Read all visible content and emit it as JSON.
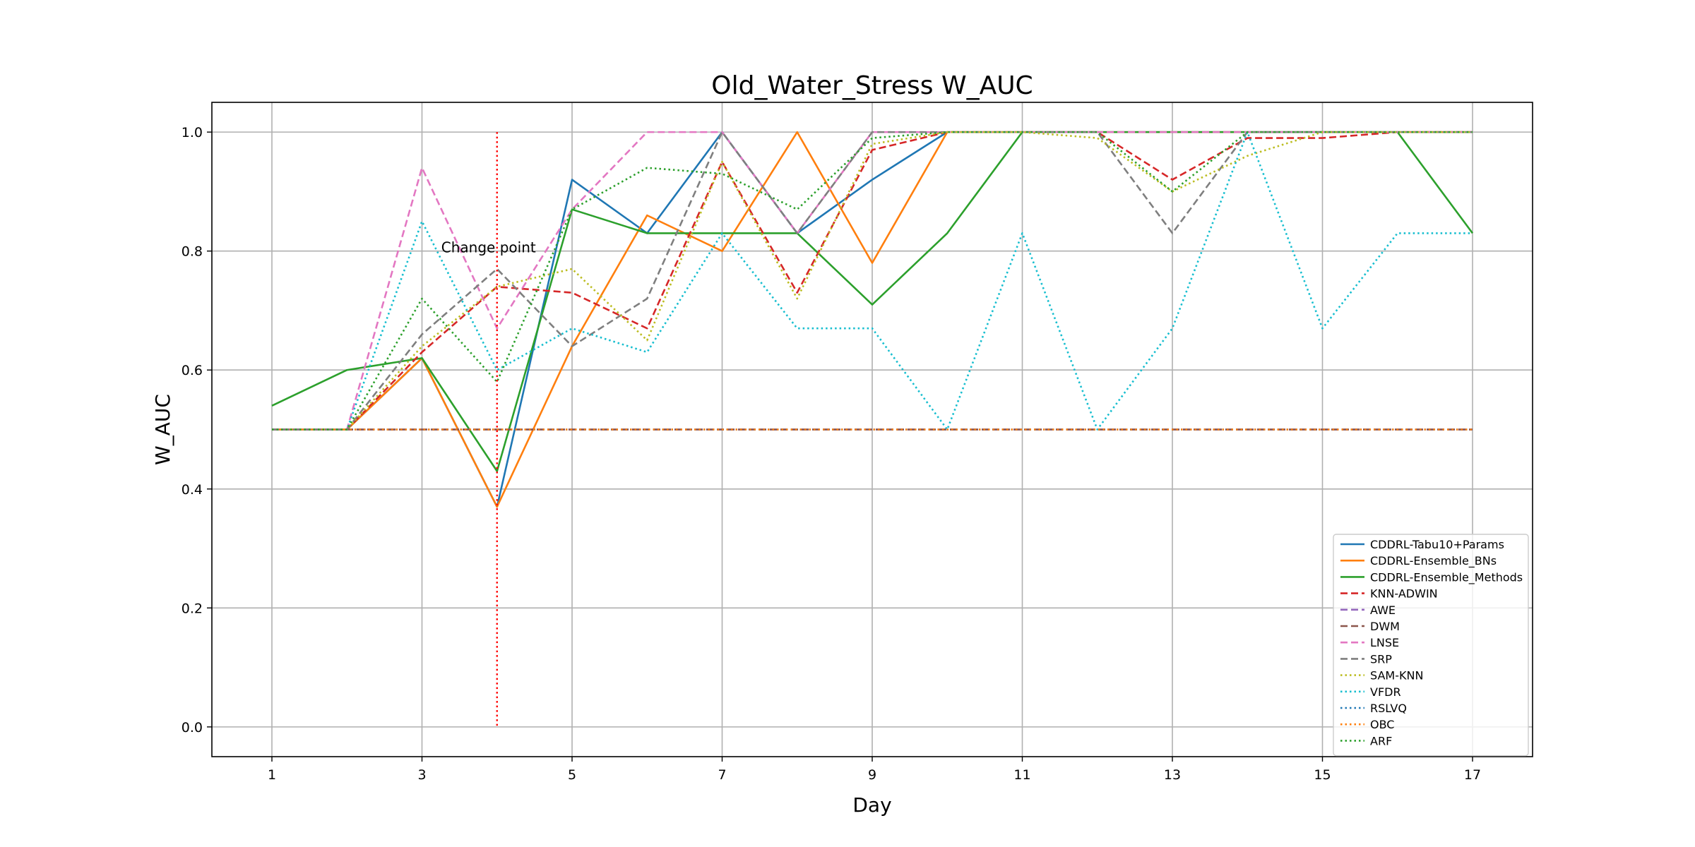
{
  "chart_data": {
    "type": "line",
    "title": "Old_Water_Stress W_AUC",
    "xlabel": "Day",
    "ylabel": "W_AUC",
    "xlim": [
      0.2,
      17.8
    ],
    "ylim": [
      -0.05,
      1.05
    ],
    "xticks": [
      1,
      3,
      5,
      7,
      9,
      11,
      13,
      15,
      17
    ],
    "yticks": [
      0.0,
      0.2,
      0.4,
      0.6,
      0.8,
      1.0
    ],
    "xtick_labels": [
      "1",
      "3",
      "5",
      "7",
      "9",
      "11",
      "13",
      "15",
      "17"
    ],
    "ytick_labels": [
      "0.0",
      "0.2",
      "0.4",
      "0.6",
      "0.8",
      "1.0"
    ],
    "grid": true,
    "legend_position": "lower-right",
    "x": [
      1,
      2,
      3,
      4,
      5,
      6,
      7,
      8,
      9,
      10,
      11,
      12,
      13,
      14,
      15,
      16,
      17
    ],
    "series": [
      {
        "name": "CDDRL-Tabu10+Params",
        "color": "#1f77b4",
        "style": "solid",
        "values": [
          0.5,
          0.5,
          0.62,
          0.37,
          0.92,
          0.83,
          1.0,
          0.83,
          0.92,
          1.0,
          1.0,
          1.0,
          1.0,
          1.0,
          1.0,
          1.0,
          1.0
        ]
      },
      {
        "name": "CDDRL-Ensemble_BNs",
        "color": "#ff7f0e",
        "style": "solid",
        "values": [
          0.5,
          0.5,
          0.62,
          0.37,
          0.64,
          0.86,
          0.8,
          1.0,
          0.78,
          1.0,
          1.0,
          1.0,
          1.0,
          1.0,
          1.0,
          1.0,
          1.0
        ]
      },
      {
        "name": "CDDRL-Ensemble_Methods",
        "color": "#2ca02c",
        "style": "solid",
        "values": [
          0.54,
          0.6,
          0.62,
          0.43,
          0.87,
          0.83,
          0.83,
          0.83,
          0.71,
          0.83,
          1.0,
          1.0,
          1.0,
          1.0,
          1.0,
          1.0,
          0.83
        ]
      },
      {
        "name": "KNN-ADWIN",
        "color": "#d62728",
        "style": "dashed",
        "values": [
          0.5,
          0.5,
          0.63,
          0.74,
          0.73,
          0.67,
          0.95,
          0.73,
          0.97,
          1.0,
          1.0,
          1.0,
          0.92,
          0.99,
          0.99,
          1.0,
          1.0
        ]
      },
      {
        "name": "AWE",
        "color": "#9467bd",
        "style": "dashed",
        "values": [
          0.5,
          0.5,
          0.5,
          0.5,
          0.5,
          0.5,
          0.5,
          0.5,
          0.5,
          0.5,
          0.5,
          0.5,
          0.5,
          0.5,
          0.5,
          0.5,
          0.5
        ]
      },
      {
        "name": "DWM",
        "color": "#8c564b",
        "style": "dashed",
        "values": [
          0.5,
          0.5,
          0.5,
          0.5,
          0.5,
          0.5,
          0.5,
          0.5,
          0.5,
          0.5,
          0.5,
          0.5,
          0.5,
          0.5,
          0.5,
          0.5,
          0.5
        ]
      },
      {
        "name": "LNSE",
        "color": "#e377c2",
        "style": "dashed",
        "values": [
          0.5,
          0.5,
          0.94,
          0.67,
          0.87,
          1.0,
          1.0,
          0.83,
          1.0,
          1.0,
          1.0,
          1.0,
          1.0,
          1.0,
          1.0,
          1.0,
          1.0
        ]
      },
      {
        "name": "SRP",
        "color": "#7f7f7f",
        "style": "dashed",
        "values": [
          0.5,
          0.5,
          0.66,
          0.77,
          0.64,
          0.72,
          1.0,
          0.83,
          1.0,
          1.0,
          1.0,
          1.0,
          0.83,
          1.0,
          1.0,
          1.0,
          1.0
        ]
      },
      {
        "name": "SAM-KNN",
        "color": "#bcbd22",
        "style": "dotted",
        "values": [
          0.5,
          0.5,
          0.64,
          0.74,
          0.77,
          0.65,
          0.95,
          0.72,
          0.98,
          1.0,
          1.0,
          0.99,
          0.9,
          0.96,
          1.0,
          1.0,
          1.0
        ]
      },
      {
        "name": "VFDR",
        "color": "#17becf",
        "style": "dotted",
        "values": [
          0.5,
          0.5,
          0.85,
          0.6,
          0.67,
          0.63,
          0.83,
          0.67,
          0.67,
          0.5,
          0.83,
          0.5,
          0.67,
          1.0,
          0.67,
          0.83,
          0.83
        ]
      },
      {
        "name": "RSLVQ",
        "color": "#1f77b4",
        "style": "dotted",
        "values": [
          0.5,
          0.5,
          0.5,
          0.5,
          0.5,
          0.5,
          0.5,
          0.5,
          0.5,
          0.5,
          0.5,
          0.5,
          0.5,
          0.5,
          0.5,
          0.5,
          0.5
        ]
      },
      {
        "name": "OBC",
        "color": "#ff7f0e",
        "style": "dotted",
        "values": [
          0.5,
          0.5,
          0.5,
          0.5,
          0.5,
          0.5,
          0.5,
          0.5,
          0.5,
          0.5,
          0.5,
          0.5,
          0.5,
          0.5,
          0.5,
          0.5,
          0.5
        ]
      },
      {
        "name": "ARF",
        "color": "#2ca02c",
        "style": "dotted",
        "values": [
          0.5,
          0.5,
          0.72,
          0.58,
          0.87,
          0.94,
          0.93,
          0.87,
          0.99,
          1.0,
          1.0,
          1.0,
          0.9,
          1.0,
          1.0,
          1.0,
          1.0
        ]
      }
    ],
    "annotations": [
      {
        "type": "vline",
        "x": 4,
        "y_from": 0.0,
        "y_to": 1.0,
        "color": "#ff0000",
        "style": "dotted",
        "label": "Change point"
      }
    ]
  }
}
